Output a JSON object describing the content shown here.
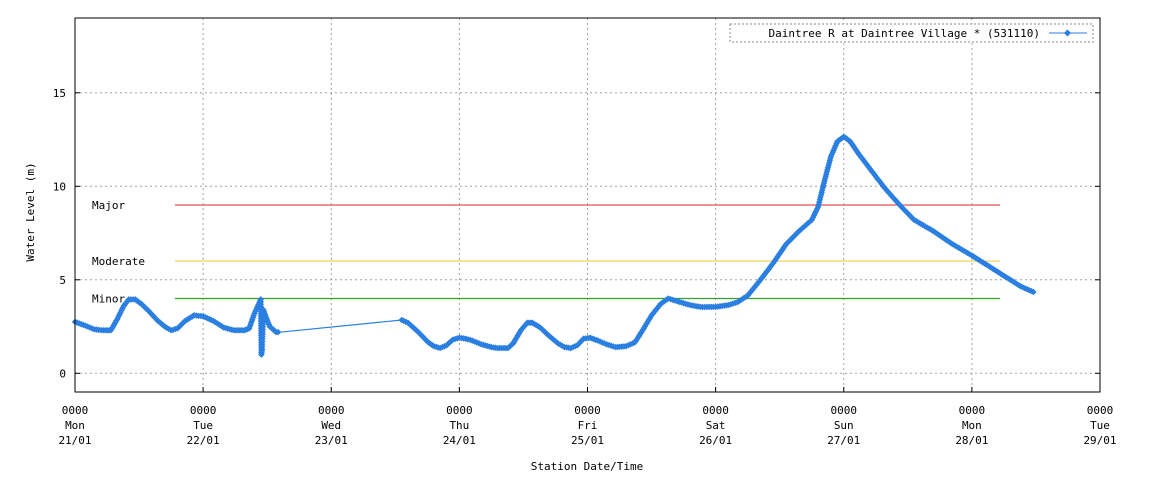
{
  "chart_data": {
    "type": "line",
    "title": "",
    "xlabel": "Station Date/Time",
    "ylabel": "Water Level (m)",
    "ylim": [
      -1,
      19
    ],
    "xlim": [
      0,
      8
    ],
    "y_ticks": [
      0,
      5,
      10,
      15
    ],
    "x_ticks": [
      {
        "x": 0,
        "lines": [
          "0000",
          "Mon",
          "21/01"
        ]
      },
      {
        "x": 1,
        "lines": [
          "0000",
          "Tue",
          "22/01"
        ]
      },
      {
        "x": 2,
        "lines": [
          "0000",
          "Wed",
          "23/01"
        ]
      },
      {
        "x": 3,
        "lines": [
          "0000",
          "Thu",
          "24/01"
        ]
      },
      {
        "x": 4,
        "lines": [
          "0000",
          "Fri",
          "25/01"
        ]
      },
      {
        "x": 5,
        "lines": [
          "0000",
          "Sat",
          "26/01"
        ]
      },
      {
        "x": 6,
        "lines": [
          "0000",
          "Sun",
          "27/01"
        ]
      },
      {
        "x": 7,
        "lines": [
          "0000",
          "Mon",
          "28/01"
        ]
      },
      {
        "x": 8,
        "lines": [
          "0000",
          "Tue",
          "29/01"
        ]
      }
    ],
    "x_unit": "days since 0000 Mon 21/01",
    "grid": true,
    "legend_position": "top-right",
    "thresholds": [
      {
        "name": "Major",
        "value": 9,
        "x_start": 0.78,
        "x_end": 7.22,
        "color": "#e05050"
      },
      {
        "name": "Moderate",
        "value": 6,
        "x_start": 0.78,
        "x_end": 7.22,
        "color": "#f0d060"
      },
      {
        "name": "Minor",
        "value": 4,
        "x_start": 0.78,
        "x_end": 7.22,
        "color": "#30a030"
      }
    ],
    "series": [
      {
        "name": "Daintree R at Daintree Village * (531110)",
        "color": "#2a7fe0",
        "points": [
          [
            0,
            2.75
          ],
          [
            0.08,
            2.55
          ],
          [
            0.15,
            2.35
          ],
          [
            0.22,
            2.3
          ],
          [
            0.28,
            2.3
          ],
          [
            0.33,
            2.9
          ],
          [
            0.38,
            3.6
          ],
          [
            0.42,
            3.95
          ],
          [
            0.47,
            3.95
          ],
          [
            0.52,
            3.7
          ],
          [
            0.58,
            3.3
          ],
          [
            0.64,
            2.85
          ],
          [
            0.7,
            2.5
          ],
          [
            0.75,
            2.3
          ],
          [
            0.8,
            2.4
          ],
          [
            0.86,
            2.8
          ],
          [
            0.93,
            3.1
          ],
          [
            1.0,
            3.05
          ],
          [
            1.08,
            2.8
          ],
          [
            1.16,
            2.45
          ],
          [
            1.24,
            2.3
          ],
          [
            1.32,
            2.3
          ],
          [
            1.36,
            2.4
          ],
          [
            1.4,
            3.2
          ],
          [
            1.44,
            3.8
          ],
          [
            1.45,
            3.95
          ],
          [
            1.455,
            1.0
          ],
          [
            1.46,
            1.3
          ],
          [
            1.47,
            3.4
          ],
          [
            1.49,
            3.0
          ],
          [
            1.52,
            2.5
          ],
          [
            1.57,
            2.2
          ],
          [
            1.6,
            2.2
          ],
          [
            2.55,
            2.85
          ],
          [
            2.6,
            2.7
          ],
          [
            2.68,
            2.2
          ],
          [
            2.75,
            1.7
          ],
          [
            2.8,
            1.45
          ],
          [
            2.85,
            1.35
          ],
          [
            2.9,
            1.5
          ],
          [
            2.95,
            1.8
          ],
          [
            3.0,
            1.9
          ],
          [
            3.05,
            1.85
          ],
          [
            3.1,
            1.75
          ],
          [
            3.17,
            1.55
          ],
          [
            3.25,
            1.4
          ],
          [
            3.3,
            1.35
          ],
          [
            3.38,
            1.35
          ],
          [
            3.42,
            1.6
          ],
          [
            3.48,
            2.3
          ],
          [
            3.53,
            2.7
          ],
          [
            3.57,
            2.7
          ],
          [
            3.63,
            2.45
          ],
          [
            3.7,
            2.0
          ],
          [
            3.77,
            1.6
          ],
          [
            3.82,
            1.4
          ],
          [
            3.87,
            1.35
          ],
          [
            3.92,
            1.5
          ],
          [
            3.97,
            1.85
          ],
          [
            4.02,
            1.9
          ],
          [
            4.08,
            1.75
          ],
          [
            4.15,
            1.55
          ],
          [
            4.22,
            1.4
          ],
          [
            4.3,
            1.45
          ],
          [
            4.37,
            1.65
          ],
          [
            4.43,
            2.3
          ],
          [
            4.5,
            3.1
          ],
          [
            4.57,
            3.7
          ],
          [
            4.63,
            4.0
          ],
          [
            4.7,
            3.85
          ],
          [
            4.8,
            3.65
          ],
          [
            4.88,
            3.55
          ],
          [
            5.0,
            3.55
          ],
          [
            5.1,
            3.65
          ],
          [
            5.17,
            3.8
          ],
          [
            5.25,
            4.15
          ],
          [
            5.35,
            5.0
          ],
          [
            5.45,
            5.9
          ],
          [
            5.55,
            6.9
          ],
          [
            5.65,
            7.6
          ],
          [
            5.75,
            8.2
          ],
          [
            5.8,
            8.9
          ],
          [
            5.85,
            10.3
          ],
          [
            5.9,
            11.6
          ],
          [
            5.95,
            12.4
          ],
          [
            6.0,
            12.65
          ],
          [
            6.05,
            12.4
          ],
          [
            6.12,
            11.7
          ],
          [
            6.22,
            10.8
          ],
          [
            6.32,
            9.9
          ],
          [
            6.45,
            8.9
          ],
          [
            6.55,
            8.2
          ],
          [
            6.7,
            7.6
          ],
          [
            6.85,
            6.9
          ],
          [
            7.0,
            6.3
          ],
          [
            7.15,
            5.65
          ],
          [
            7.3,
            5.0
          ],
          [
            7.38,
            4.65
          ],
          [
            7.48,
            4.35
          ]
        ]
      }
    ]
  }
}
